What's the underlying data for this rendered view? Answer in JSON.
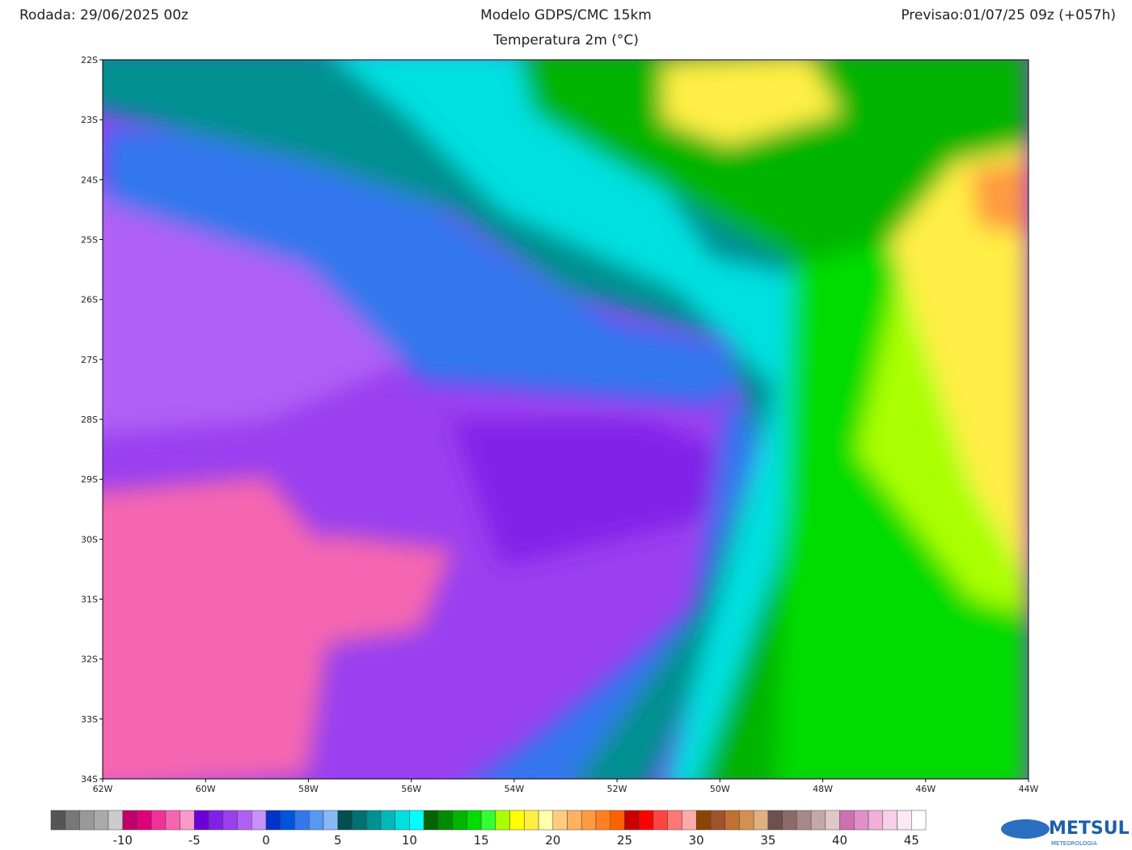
{
  "header": {
    "run": "Rodada: 29/06/2025 00z",
    "model": "Modelo GDPS/CMC 15km",
    "variable": "Temperatura 2m (°C)",
    "forecast": "Previsao:01/07/25 09z (+057h)"
  },
  "map": {
    "xlim": [
      -62,
      -44
    ],
    "ylim": [
      -34,
      -22
    ],
    "xticks": [
      {
        "value": -62,
        "label": "62W"
      },
      {
        "value": -60,
        "label": "60W"
      },
      {
        "value": -58,
        "label": "58W"
      },
      {
        "value": -56,
        "label": "56W"
      },
      {
        "value": -54,
        "label": "54W"
      },
      {
        "value": -52,
        "label": "52W"
      },
      {
        "value": -50,
        "label": "50W"
      },
      {
        "value": -48,
        "label": "48W"
      },
      {
        "value": -46,
        "label": "46W"
      },
      {
        "value": -44,
        "label": "44W"
      }
    ],
    "yticks": [
      {
        "value": -22,
        "label": "22S"
      },
      {
        "value": -23,
        "label": "23S"
      },
      {
        "value": -24,
        "label": "24S"
      },
      {
        "value": -25,
        "label": "25S"
      },
      {
        "value": -26,
        "label": "26S"
      },
      {
        "value": -27,
        "label": "27S"
      },
      {
        "value": -28,
        "label": "28S"
      },
      {
        "value": -29,
        "label": "29S"
      },
      {
        "value": -30,
        "label": "30S"
      },
      {
        "value": -31,
        "label": "31S"
      },
      {
        "value": -32,
        "label": "32S"
      },
      {
        "value": -33,
        "label": "33S"
      },
      {
        "value": -34,
        "label": "34S"
      }
    ]
  },
  "colorbar": {
    "lim": [
      -15,
      46
    ],
    "ticks": [
      -10,
      -5,
      0,
      5,
      10,
      15,
      20,
      25,
      30,
      35,
      40,
      45
    ],
    "colors": [
      "#555555",
      "#777777",
      "#999999",
      "#aaaaaa",
      "#cccccc",
      "#c0006b",
      "#e0007c",
      "#f0339a",
      "#f566b0",
      "#f999c8",
      "#6a00d8",
      "#8020e8",
      "#9a40f0",
      "#b060f5",
      "#c890f8",
      "#0033cc",
      "#0055dd",
      "#3377ee",
      "#5599f5",
      "#88b8f8",
      "#005050",
      "#007070",
      "#009090",
      "#00b8b8",
      "#00e0e0",
      "#00ffff",
      "#006400",
      "#008c00",
      "#00b400",
      "#00dc00",
      "#33ff33",
      "#aaff00",
      "#ffff00",
      "#ffee44",
      "#ffffaa",
      "#ffcc80",
      "#ffb060",
      "#ff9a40",
      "#ff8020",
      "#ff6000",
      "#cc0000",
      "#ff0000",
      "#ff4444",
      "#ff7777",
      "#ffaaaa",
      "#8b4500",
      "#a0522d",
      "#c07030",
      "#d49050",
      "#e0b080",
      "#6e5050",
      "#8c6a6a",
      "#a88888",
      "#c4a8a8",
      "#e0c8c8",
      "#d070b0",
      "#e090c8",
      "#f0b0d8",
      "#f8d0e8",
      "#fce8f4",
      "#ffffff"
    ]
  },
  "logo": {
    "name": "METSUL",
    "sub": "METEOROLOGIA"
  }
}
